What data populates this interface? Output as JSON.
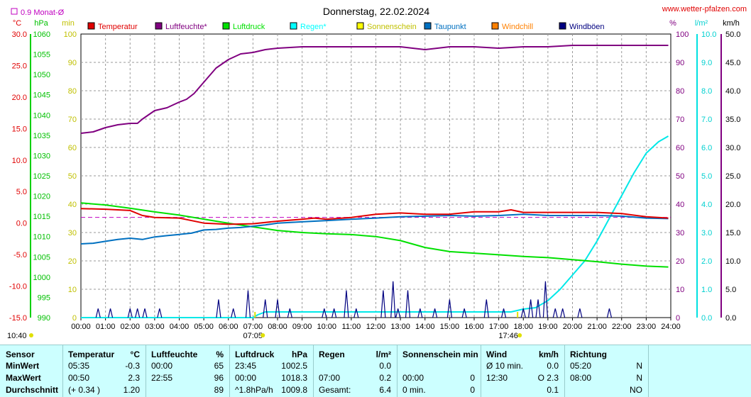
{
  "chart_data": {
    "type": "line",
    "title": "Donnerstag, 22.02.2024",
    "source": "www.wetter-pfalzen.com",
    "month_avg_label": "0.9 Monat-Ø",
    "month_avg_value": 0.9,
    "legend": [
      {
        "name": "Temperatur",
        "color": "#e00000"
      },
      {
        "name": "Luftfeuchte*",
        "color": "#800080"
      },
      {
        "name": "Luftdruck",
        "color": "#00e000"
      },
      {
        "name": "Regen*",
        "color": "#00ffff"
      },
      {
        "name": "Sonnenschein",
        "color": "#ffff00"
      },
      {
        "name": "Taupunkt",
        "color": "#0070c0"
      },
      {
        "name": "Windchill",
        "color": "#ff8000"
      },
      {
        "name": "Windböen",
        "color": "#000080"
      }
    ],
    "axes": {
      "temp": {
        "unit": "°C",
        "min": -15,
        "max": 30,
        "ticks": [
          "30.0",
          "25.0",
          "20.0",
          "15.0",
          "10.0",
          "5.0",
          "0.0",
          "-5.0",
          "-10.0",
          "-15.0"
        ],
        "color": "#e00000"
      },
      "pressure": {
        "unit": "hPa",
        "min": 990,
        "max": 1060,
        "ticks": [
          "1060",
          "1055",
          "1050",
          "1045",
          "1040",
          "1035",
          "1030",
          "1025",
          "1020",
          "1015",
          "1010",
          "1005",
          "1000",
          "995",
          "990"
        ],
        "color": "#00c000"
      },
      "minutes": {
        "unit": "min",
        "min": 0,
        "max": 100,
        "ticks": [
          "100",
          "90",
          "80",
          "70",
          "60",
          "50",
          "40",
          "30",
          "20",
          "10",
          "0"
        ],
        "color": "#c0c000"
      },
      "humidity": {
        "unit": "%",
        "min": 0,
        "max": 100,
        "ticks": [
          "100",
          "90",
          "80",
          "70",
          "60",
          "50",
          "40",
          "30",
          "20",
          "10",
          "0"
        ],
        "color": "#800080"
      },
      "rain": {
        "unit": "l/m²",
        "min": 0,
        "max": 10,
        "ticks": [
          "10.0",
          "9.0",
          "8.0",
          "7.0",
          "6.0",
          "5.0",
          "4.0",
          "3.0",
          "2.0",
          "1.0",
          "0.0"
        ],
        "color": "#00d0d0"
      },
      "wind": {
        "unit": "km/h",
        "min": 0,
        "max": 50,
        "ticks": [
          "50.0",
          "45.0",
          "40.0",
          "35.0",
          "30.0",
          "25.0",
          "20.0",
          "15.0",
          "10.0",
          "5.0",
          "0.0"
        ],
        "color": "#000"
      }
    },
    "x_ticks": [
      "00:00",
      "01:00",
      "02:00",
      "03:00",
      "04:00",
      "05:00",
      "06:00",
      "07:00",
      "08:00",
      "09:00",
      "10:00",
      "11:00",
      "12:00",
      "13:00",
      "14:00",
      "15:00",
      "16:00",
      "17:00",
      "18:00",
      "19:00",
      "20:00",
      "21:00",
      "22:00",
      "23:00",
      "24:00"
    ],
    "sunrise": "07:05",
    "sunset": "17:46",
    "sun_hours_label": "10:40",
    "series": {
      "temperature": {
        "x": [
          0,
          1,
          2,
          2.5,
          3,
          4,
          5,
          6,
          7,
          8,
          9,
          9.5,
          10,
          11,
          12,
          13,
          14,
          15,
          16,
          17,
          17.5,
          18,
          19,
          20,
          21,
          22,
          23,
          23.9
        ],
        "y": [
          2.3,
          2.2,
          2.0,
          1.2,
          0.9,
          0.8,
          0.0,
          -0.2,
          -0.1,
          0.3,
          0.6,
          0.8,
          0.6,
          0.9,
          1.4,
          1.6,
          1.4,
          1.4,
          1.8,
          1.8,
          2.1,
          1.7,
          1.7,
          1.7,
          1.7,
          1.5,
          1.0,
          0.8
        ]
      },
      "humidity": {
        "x": [
          0,
          0.5,
          1,
          1.5,
          2,
          2.3,
          2.5,
          3,
          3.5,
          4,
          4.3,
          4.6,
          5,
          5.5,
          6,
          6.5,
          7,
          7.5,
          8,
          9,
          10,
          11,
          12,
          13,
          14,
          15,
          16,
          17,
          18,
          19,
          20,
          21,
          22,
          23,
          23.9
        ],
        "y": [
          65,
          65.5,
          67,
          68,
          68.5,
          68.5,
          70,
          73,
          74,
          76,
          77,
          79,
          83,
          88,
          91,
          93,
          93.5,
          94.5,
          95,
          95.5,
          95.5,
          95.5,
          95.5,
          95.5,
          94.5,
          95.5,
          95.5,
          95,
          95.5,
          95.5,
          96,
          96,
          96,
          96,
          96
        ]
      },
      "pressure": {
        "x": [
          0,
          1,
          2,
          3,
          4,
          5,
          6,
          7,
          8,
          9,
          10,
          11,
          12,
          13,
          14,
          15,
          16,
          17,
          18,
          19,
          20,
          21,
          22,
          23,
          23.9
        ],
        "y": [
          1018.3,
          1017.8,
          1017,
          1016.1,
          1015.3,
          1014.3,
          1013.3,
          1012.4,
          1011.5,
          1011,
          1010.7,
          1010.5,
          1010,
          1009,
          1007.3,
          1006.3,
          1005.9,
          1005.5,
          1005.1,
          1004.8,
          1004.3,
          1003.8,
          1003.2,
          1002.7,
          1002.5
        ]
      },
      "dewpoint": {
        "x": [
          0,
          0.5,
          1,
          1.5,
          2,
          2.5,
          3,
          3.5,
          4,
          4.5,
          5,
          5.5,
          6,
          6.5,
          7,
          7.5,
          8,
          9,
          10,
          11,
          12,
          13,
          14,
          15,
          16,
          17,
          18,
          19,
          20,
          21,
          22,
          23,
          23.9
        ],
        "y": [
          -3.3,
          -3.2,
          -2.9,
          -2.6,
          -2.4,
          -2.6,
          -2.2,
          -2.0,
          -1.8,
          -1.6,
          -1.1,
          -1.0,
          -0.8,
          -0.7,
          -0.5,
          -0.3,
          0.0,
          0.2,
          0.4,
          0.6,
          0.8,
          1.0,
          1.1,
          1.2,
          1.1,
          1.2,
          1.4,
          1.2,
          1.2,
          1.2,
          1.1,
          0.8,
          0.7
        ]
      },
      "rain": {
        "x": [
          0,
          7,
          7.2,
          7.5,
          8,
          9,
          10,
          11,
          12,
          13,
          14,
          15,
          16,
          17,
          17.5,
          18,
          18.5,
          19,
          19.5,
          20,
          20.5,
          21,
          21.5,
          22,
          22.5,
          23,
          23.5,
          23.9
        ],
        "y": [
          0,
          0,
          0.1,
          0.2,
          0.2,
          0.2,
          0.2,
          0.2,
          0.2,
          0.2,
          0.2,
          0.2,
          0.2,
          0.2,
          0.2,
          0.3,
          0.35,
          0.6,
          1.0,
          1.5,
          2.0,
          2.7,
          3.5,
          4.3,
          5.1,
          5.8,
          6.2,
          6.4
        ]
      },
      "gusts": {
        "x": [
          0.7,
          1.2,
          2.0,
          2.3,
          2.6,
          3.2,
          5.6,
          6.2,
          6.8,
          7.5,
          8.0,
          8.5,
          9.9,
          10.3,
          10.8,
          11.2,
          12.3,
          12.7,
          12.9,
          13.3,
          13.8,
          14.4,
          15.0,
          15.6,
          16.5,
          17.2,
          18.0,
          18.3,
          18.6,
          18.9,
          19.3,
          19.6,
          20.3,
          21.5
        ],
        "y": [
          1.6,
          1.6,
          1.6,
          1.6,
          1.6,
          1.6,
          3.2,
          1.6,
          4.8,
          3.2,
          3.2,
          1.6,
          1.6,
          1.6,
          4.8,
          1.6,
          4.8,
          6.4,
          1.6,
          4.8,
          1.6,
          1.6,
          3.2,
          1.6,
          3.2,
          1.6,
          1.6,
          3.2,
          3.2,
          6.4,
          1.6,
          1.6,
          1.6,
          1.6
        ]
      }
    },
    "ref_line_temp": 0.9
  },
  "table": {
    "sections": [
      {
        "title": "Sensor",
        "unit": ""
      },
      {
        "title": "Temperatur",
        "unit": "°C"
      },
      {
        "title": "Luftfeuchte",
        "unit": "%"
      },
      {
        "title": "Luftdruck",
        "unit": "hPa"
      },
      {
        "title": "Regen",
        "unit": "l/m²"
      },
      {
        "title": "Sonnenschein min",
        "unit": ""
      },
      {
        "title": "Wind",
        "unit": "km/h"
      },
      {
        "title": "Richtung",
        "unit": ""
      }
    ],
    "row_labels": [
      "MinWert",
      "MaxWert",
      "Durchschnitt"
    ],
    "rows": [
      {
        "temp_t": "05:35",
        "temp_v": "-0.3",
        "hum_t": "00:00",
        "hum_v": "65",
        "press_t": "23:45",
        "press_v": "1002.5",
        "rain_t": "",
        "rain_v": "0.0",
        "sun_t": "",
        "sun_v": "",
        "wind_t": "Ø 10 min.",
        "wind_v": "0.0",
        "dir_t": "05:20",
        "dir_v": "N"
      },
      {
        "temp_t": "00:50",
        "temp_v": "2.3",
        "hum_t": "22:55",
        "hum_v": "96",
        "press_t": "00:00",
        "press_v": "1018.3",
        "rain_t": "07:00",
        "rain_v": "0.2",
        "sun_t": "00:00",
        "sun_v": "0",
        "wind_t": "12:30",
        "wind_v": "O 2.3",
        "dir_t": "08:00",
        "dir_v": "N"
      },
      {
        "temp_t": "(+ 0.34 )",
        "temp_v": "1.20",
        "hum_t": "",
        "hum_v": "89",
        "press_t": "^1.8hPa/h",
        "press_v": "1009.8",
        "rain_t": "Gesamt:",
        "rain_v": "6.4",
        "sun_t": "0 min.",
        "sun_v": "0",
        "wind_t": "",
        "wind_v": "0.1",
        "dir_t": "",
        "dir_v": "NO"
      }
    ]
  }
}
